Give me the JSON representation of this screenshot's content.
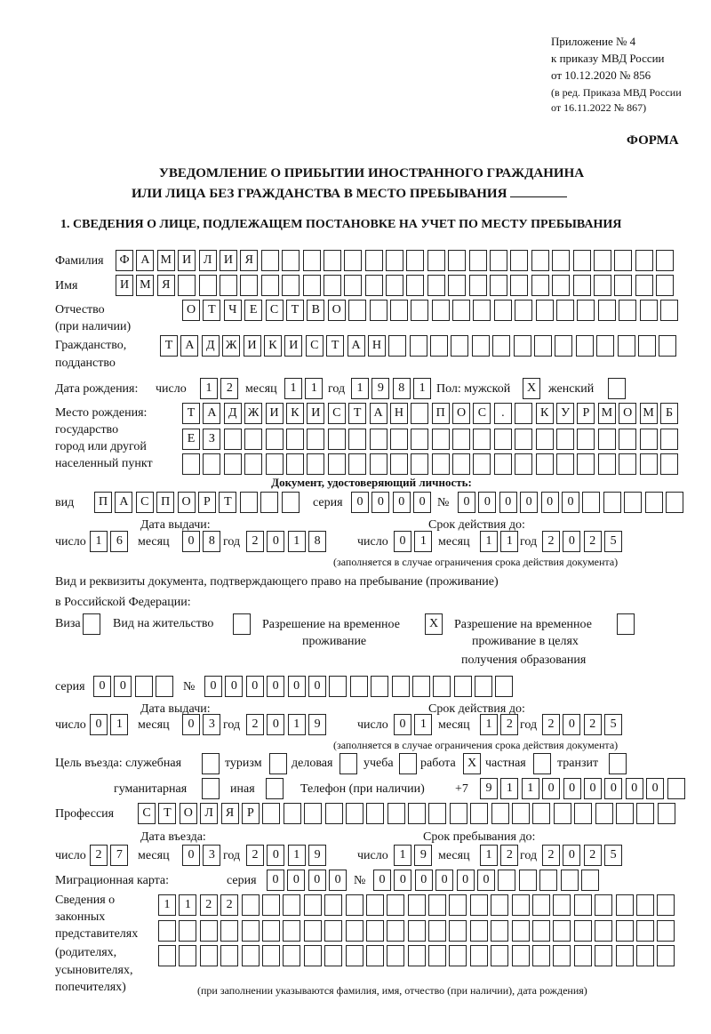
{
  "header": {
    "line1": "Приложение № 4",
    "line2": "к приказу МВД России",
    "line3": "от 10.12.2020 № 856",
    "line4": "(в ред. Приказа МВД России",
    "line5": "от 16.11.2022 № 867)",
    "forma": "ФОРМА"
  },
  "title": {
    "line1": "УВЕДОМЛЕНИЕ О ПРИБЫТИИ ИНОСТРАННОГО ГРАЖДАНИНА",
    "line2": "ИЛИ ЛИЦА БЕЗ ГРАЖДАНСТВА В МЕСТО ПРЕБЫВАНИЯ"
  },
  "section1": {
    "heading": "1. СВЕДЕНИЯ О ЛИЦЕ, ПОДЛЕЖАЩЕМ ПОСТАНОВКЕ НА УЧЕТ ПО МЕСТУ ПРЕБЫВАНИЯ",
    "surname": {
      "label": "Фамилия",
      "value": "ФАМИЛИЯ"
    },
    "name": {
      "label": "Имя",
      "value": "ИМЯ"
    },
    "patronymic": {
      "label1": "Отчество",
      "label2": "(при наличии)",
      "value": "ОТЧЕСТВО"
    },
    "citizenship": {
      "label1": "Гражданство,",
      "label2": "подданство",
      "value": "ТАДЖИКИСТАН"
    },
    "birth_date": {
      "label": "Дата рождения:",
      "day_label": "число",
      "day": "12",
      "month_label": "месяц",
      "month": "11",
      "year_label": "год",
      "year": "1981"
    },
    "sex": {
      "label": "Пол: мужской",
      "male": "X",
      "female_label": "женский",
      "female": ""
    },
    "birthplace": {
      "label1": "Место рождения:",
      "label2": "государство",
      "label3": "город или другой",
      "label4": "населенный пункт",
      "row1": "ТАДЖИКИСТАН ПОС. КУРМОМБ",
      "row2": "ЕЗ",
      "row3": ""
    },
    "id_doc": {
      "heading": "Документ, удостоверяющий личность:",
      "kind_label": "вид",
      "kind": "ПАСПОРТ",
      "series_label": "серия",
      "series": "0000",
      "number_label": "№",
      "number": "000000",
      "issue_label": "Дата выдачи:",
      "valid_label": "Срок действия до:",
      "day_label": "число",
      "month_label": "месяц",
      "year_label": "год",
      "issue_day": "16",
      "issue_month": "08",
      "issue_year": "2018",
      "valid_day": "01",
      "valid_month": "11",
      "valid_year": "2025",
      "note": "(заполняется в случае ограничения срока действия документа)"
    },
    "stay_doc": {
      "heading1": "Вид и реквизиты документа, подтверждающего право на пребывание (проживание)",
      "heading2": "в Российской Федерации:",
      "visa_label": "Виза",
      "visa": "",
      "residence_label": "Вид на жительство",
      "residence": "",
      "trp_label1": "Разрешение на временное",
      "trp_label2": "проживание",
      "trp": "X",
      "trp_edu_label1": "Разрешение на временное",
      "trp_edu_label2": "проживание в целях",
      "trp_edu_label3": "получения образования",
      "trp_edu": "",
      "series_label": "серия",
      "series": "00",
      "number_label": "№",
      "number": "000000",
      "issue_label": "Дата выдачи:",
      "valid_label": "Срок действия до:",
      "day_label": "число",
      "month_label": "месяц",
      "year_label": "год",
      "issue_day": "01",
      "issue_month": "03",
      "issue_year": "2019",
      "valid_day": "01",
      "valid_month": "12",
      "valid_year": "2025",
      "note": "(заполняется в случае ограничения срока действия документа)"
    },
    "purpose": {
      "label": "Цель въезда: служебная",
      "official": "",
      "tourism_label": "туризм",
      "tourism": "",
      "business_label": "деловая",
      "business": "",
      "study_label": "учеба",
      "study": "",
      "work_label": "работа",
      "work": "X",
      "private_label": "частная",
      "private": "",
      "transit_label": "транзит",
      "transit": "",
      "humanitarian_label": "гуманитарная",
      "humanitarian": "",
      "other_label": "иная",
      "other": ""
    },
    "phone": {
      "label": "Телефон (при наличии)",
      "prefix": "+7",
      "value": "911000000"
    },
    "profession": {
      "label": "Профессия",
      "value": "СТОЛЯР"
    },
    "entry": {
      "entry_label": "Дата въезда:",
      "stay_label": "Срок пребывания до:",
      "day_label": "число",
      "month_label": "месяц",
      "year_label": "год",
      "entry_day": "27",
      "entry_month": "03",
      "entry_year": "2019",
      "stay_day": "19",
      "stay_month": "12",
      "stay_year": "2025"
    },
    "migration_card": {
      "label": "Миграционная карта:",
      "series_label": "серия",
      "series": "0000",
      "number_label": "№",
      "number": "000000"
    },
    "representatives": {
      "label1": "Сведения о",
      "label2": "законных",
      "label3": "представителях",
      "label4": "(родителях,",
      "label5": "усыновителях,",
      "label6": "попечителях)",
      "row1": "1122",
      "row2": "",
      "row3": "",
      "note": "(при заполнении указываются фамилия, имя, отчество (при наличии), дата рождения)"
    }
  }
}
